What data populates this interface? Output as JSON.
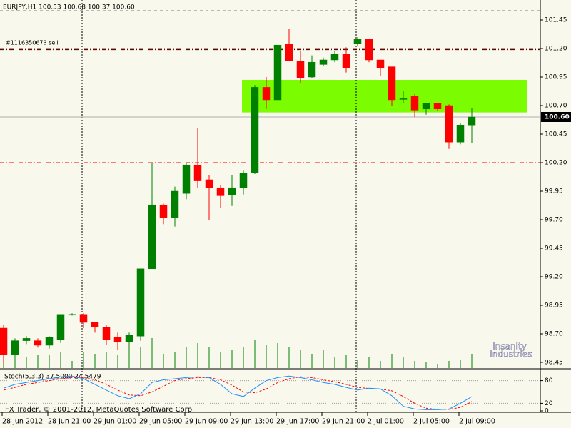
{
  "chart_data": {
    "type": "candlestick",
    "title": "EURJPY,H1 100.53 100.68 100.37 100.60",
    "categories": [
      "28 Jun 2012",
      null,
      null,
      null,
      "28 Jun 21:00",
      null,
      null,
      null,
      "29 Jun 01:00",
      null,
      null,
      null,
      "29 Jun 05:00",
      null,
      null,
      null,
      "29 Jun 09:00",
      null,
      null,
      null,
      "29 Jun 13:00",
      null,
      null,
      null,
      "29 Jun 17:00",
      null,
      null,
      null,
      "29 Jun 21:00",
      null,
      null,
      null,
      "2 Jul 01:00",
      null,
      null,
      null,
      "2 Jul 05:00",
      null,
      null,
      null,
      "2 Jul 09:00",
      null
    ],
    "open": [
      98.75,
      98.52,
      98.64,
      98.64,
      98.6,
      98.65,
      98.87,
      98.87,
      98.8,
      98.76,
      98.67,
      98.63,
      98.68,
      99.27,
      99.83,
      99.72,
      99.93,
      100.18,
      100.05,
      99.98,
      99.92,
      99.98,
      100.11,
      100.86,
      100.75,
      101.24,
      101.09,
      100.95,
      101.06,
      101.1,
      101.15,
      101.24,
      101.28,
      101.1,
      101.04,
      100.76,
      100.78,
      100.67,
      100.72,
      100.7,
      100.38,
      100.53
    ],
    "high": [
      98.78,
      98.66,
      98.68,
      98.66,
      98.68,
      98.87,
      98.88,
      98.88,
      98.8,
      98.78,
      98.71,
      98.71,
      99.27,
      100.2,
      99.84,
      99.99,
      100.2,
      100.5,
      100.09,
      100.0,
      100.09,
      100.13,
      100.88,
      100.95,
      101.23,
      101.37,
      101.18,
      101.14,
      101.12,
      101.18,
      101.21,
      101.3,
      101.28,
      101.1,
      101.04,
      100.83,
      100.8,
      100.72,
      100.72,
      100.71,
      100.55,
      100.68
    ],
    "low": [
      98.44,
      98.48,
      98.61,
      98.58,
      98.57,
      98.62,
      98.86,
      98.75,
      98.71,
      98.6,
      98.56,
      98.53,
      98.64,
      99.27,
      99.66,
      99.64,
      99.88,
      99.98,
      99.7,
      99.8,
      99.82,
      99.92,
      100.1,
      100.67,
      100.75,
      101.09,
      100.9,
      100.94,
      101.05,
      101.08,
      100.99,
      101.22,
      101.08,
      100.96,
      100.7,
      100.72,
      100.6,
      100.62,
      100.65,
      100.32,
      100.36,
      100.37
    ],
    "close": [
      98.52,
      98.64,
      98.66,
      98.6,
      98.67,
      98.87,
      98.87,
      98.8,
      98.76,
      98.65,
      98.63,
      98.69,
      99.27,
      99.83,
      99.72,
      99.95,
      100.18,
      100.04,
      99.98,
      99.91,
      99.98,
      100.11,
      100.86,
      100.75,
      101.23,
      101.09,
      100.94,
      101.08,
      101.1,
      101.15,
      101.03,
      101.28,
      101.1,
      101.03,
      100.75,
      100.76,
      100.66,
      100.72,
      100.67,
      100.38,
      100.53,
      100.6
    ],
    "volume": [
      25,
      20,
      15,
      18,
      18,
      22,
      10,
      22,
      20,
      22,
      18,
      25,
      30,
      42,
      20,
      22,
      30,
      35,
      30,
      22,
      25,
      30,
      40,
      32,
      35,
      30,
      25,
      20,
      25,
      15,
      18,
      12,
      15,
      10,
      20,
      15,
      10,
      8,
      6,
      10,
      12,
      20
    ],
    "up_color": "#008000",
    "down_color": "#ff0000",
    "volume_color": "#008000",
    "ylim": [
      98.4,
      101.625
    ],
    "yticks": [
      101.45,
      {
        "value": 101.2,
        "label": "101.20"
      },
      100.95,
      {
        "value": 100.7,
        "label": "100.70"
      },
      100.45,
      {
        "value": 100.2,
        "label": "100.20"
      },
      99.95,
      {
        "value": 99.7,
        "label": "99.70"
      },
      99.45,
      {
        "value": 99.2,
        "label": "99.20"
      },
      98.95,
      {
        "value": 98.7,
        "label": "98.70"
      },
      98.45
    ],
    "levels": [
      {
        "value": 101.53,
        "color": "#000000",
        "style": "dashed"
      },
      {
        "value": 101.2,
        "color": "#ff0000",
        "style": "dashdot"
      },
      {
        "value": 101.19,
        "color": "#000000",
        "style": "dashdot"
      },
      {
        "value": 100.2,
        "color": "#ff0000",
        "style": "dashdot"
      }
    ],
    "order_label": "#1116350673 sell",
    "price_line": {
      "value": 100.6,
      "label": "100.60"
    },
    "zone": {
      "from": 21,
      "to": 46,
      "low": 100.64,
      "high": 100.925,
      "color": "#7cfc00"
    },
    "separators": [
      7,
      31
    ],
    "watermark": [
      "Insanity",
      "Industries"
    ],
    "copyright": "IFX Trader, © 2001-2012, MetaQuotes Software Corp.",
    "indicator": {
      "title": "Stoch(5,3,3) 37.5000 24.5479",
      "k": [
        60,
        70,
        75,
        80,
        85,
        90,
        92,
        85,
        70,
        55,
        40,
        32,
        45,
        75,
        82,
        85,
        88,
        90,
        88,
        70,
        45,
        38,
        60,
        80,
        88,
        92,
        88,
        82,
        75,
        70,
        62,
        55,
        60,
        58,
        40,
        12,
        5,
        3,
        3,
        5,
        20,
        37.5
      ],
      "d": [
        55,
        62,
        70,
        75,
        80,
        85,
        88,
        88,
        82,
        70,
        55,
        42,
        40,
        50,
        65,
        80,
        85,
        88,
        88,
        82,
        68,
        50,
        48,
        58,
        75,
        85,
        90,
        88,
        82,
        77,
        70,
        62,
        59,
        58,
        53,
        38,
        20,
        7,
        4,
        4,
        9,
        24.5479
      ],
      "k_color": "#1e90ff",
      "d_color": "#ff0000",
      "ylim": [
        0,
        100
      ],
      "yticks": [
        80,
        20,
        0
      ],
      "levels": [
        80,
        20
      ]
    }
  }
}
